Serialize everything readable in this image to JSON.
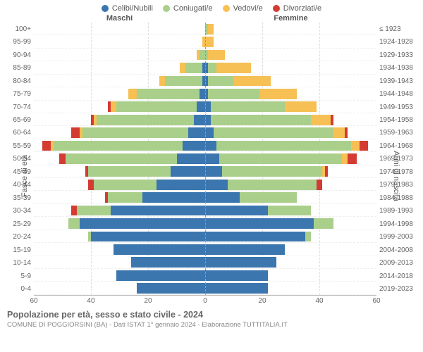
{
  "legend": [
    {
      "label": "Celibi/Nubili",
      "color": "#3b76af"
    },
    {
      "label": "Coniugati/e",
      "color": "#a9cf8b"
    },
    {
      "label": "Vedovi/e",
      "color": "#f6c054"
    },
    {
      "label": "Divorziati/e",
      "color": "#d43b33"
    }
  ],
  "headers": {
    "male": "Maschi",
    "female": "Femmine"
  },
  "axis_labels": {
    "left": "Fasce di età",
    "right": "Anni di nascita"
  },
  "x_axis": {
    "max": 60,
    "ticks": [
      60,
      40,
      20,
      0,
      20,
      40,
      60
    ]
  },
  "colors": {
    "single": "#3b76af",
    "married": "#a9cf8b",
    "widowed": "#f6c054",
    "divorced": "#d43b33",
    "grid": "#dddddd",
    "background": "#ffffff"
  },
  "categories_order": [
    "single",
    "married",
    "widowed",
    "divorced"
  ],
  "rows": [
    {
      "age": "100+",
      "birth": "≤ 1923",
      "m": {
        "single": 0,
        "married": 0,
        "widowed": 0,
        "divorced": 0
      },
      "f": {
        "single": 0,
        "married": 1,
        "widowed": 2,
        "divorced": 0
      }
    },
    {
      "age": "95-99",
      "birth": "1924-1928",
      "m": {
        "single": 0,
        "married": 0,
        "widowed": 1,
        "divorced": 0
      },
      "f": {
        "single": 0,
        "married": 0,
        "widowed": 3,
        "divorced": 0
      }
    },
    {
      "age": "90-94",
      "birth": "1929-1933",
      "m": {
        "single": 0,
        "married": 2,
        "widowed": 1,
        "divorced": 0
      },
      "f": {
        "single": 0,
        "married": 1,
        "widowed": 6,
        "divorced": 0
      }
    },
    {
      "age": "85-89",
      "birth": "1934-1938",
      "m": {
        "single": 1,
        "married": 6,
        "widowed": 2,
        "divorced": 0
      },
      "f": {
        "single": 1,
        "married": 3,
        "widowed": 12,
        "divorced": 0
      }
    },
    {
      "age": "80-84",
      "birth": "1939-1943",
      "m": {
        "single": 1,
        "married": 13,
        "widowed": 2,
        "divorced": 0
      },
      "f": {
        "single": 1,
        "married": 9,
        "widowed": 13,
        "divorced": 0
      }
    },
    {
      "age": "75-79",
      "birth": "1944-1948",
      "m": {
        "single": 2,
        "married": 22,
        "widowed": 3,
        "divorced": 0
      },
      "f": {
        "single": 1,
        "married": 18,
        "widowed": 13,
        "divorced": 0
      }
    },
    {
      "age": "70-74",
      "birth": "1949-1953",
      "m": {
        "single": 3,
        "married": 28,
        "widowed": 2,
        "divorced": 1
      },
      "f": {
        "single": 2,
        "married": 26,
        "widowed": 11,
        "divorced": 0
      }
    },
    {
      "age": "65-69",
      "birth": "1954-1958",
      "m": {
        "single": 4,
        "married": 34,
        "widowed": 1,
        "divorced": 1
      },
      "f": {
        "single": 2,
        "married": 35,
        "widowed": 7,
        "divorced": 1
      }
    },
    {
      "age": "60-64",
      "birth": "1959-1963",
      "m": {
        "single": 6,
        "married": 37,
        "widowed": 1,
        "divorced": 3
      },
      "f": {
        "single": 3,
        "married": 42,
        "widowed": 4,
        "divorced": 1
      }
    },
    {
      "age": "55-59",
      "birth": "1964-1968",
      "m": {
        "single": 8,
        "married": 45,
        "widowed": 1,
        "divorced": 3
      },
      "f": {
        "single": 4,
        "married": 47,
        "widowed": 3,
        "divorced": 3
      }
    },
    {
      "age": "50-54",
      "birth": "1969-1973",
      "m": {
        "single": 10,
        "married": 39,
        "widowed": 0,
        "divorced": 2
      },
      "f": {
        "single": 5,
        "married": 43,
        "widowed": 2,
        "divorced": 3
      }
    },
    {
      "age": "45-49",
      "birth": "1974-1978",
      "m": {
        "single": 12,
        "married": 29,
        "widowed": 0,
        "divorced": 1
      },
      "f": {
        "single": 6,
        "married": 35,
        "widowed": 1,
        "divorced": 1
      }
    },
    {
      "age": "40-44",
      "birth": "1979-1983",
      "m": {
        "single": 17,
        "married": 22,
        "widowed": 0,
        "divorced": 2
      },
      "f": {
        "single": 8,
        "married": 31,
        "widowed": 0,
        "divorced": 2
      }
    },
    {
      "age": "35-39",
      "birth": "1984-1988",
      "m": {
        "single": 22,
        "married": 12,
        "widowed": 0,
        "divorced": 1
      },
      "f": {
        "single": 12,
        "married": 20,
        "widowed": 0,
        "divorced": 0
      }
    },
    {
      "age": "30-34",
      "birth": "1989-1993",
      "m": {
        "single": 33,
        "married": 12,
        "widowed": 0,
        "divorced": 2
      },
      "f": {
        "single": 22,
        "married": 15,
        "widowed": 0,
        "divorced": 0
      }
    },
    {
      "age": "25-29",
      "birth": "1994-1998",
      "m": {
        "single": 44,
        "married": 4,
        "widowed": 0,
        "divorced": 0
      },
      "f": {
        "single": 38,
        "married": 7,
        "widowed": 0,
        "divorced": 0
      }
    },
    {
      "age": "20-24",
      "birth": "1999-2003",
      "m": {
        "single": 40,
        "married": 1,
        "widowed": 0,
        "divorced": 0
      },
      "f": {
        "single": 35,
        "married": 2,
        "widowed": 0,
        "divorced": 0
      }
    },
    {
      "age": "15-19",
      "birth": "2004-2008",
      "m": {
        "single": 32,
        "married": 0,
        "widowed": 0,
        "divorced": 0
      },
      "f": {
        "single": 28,
        "married": 0,
        "widowed": 0,
        "divorced": 0
      }
    },
    {
      "age": "10-14",
      "birth": "2009-2013",
      "m": {
        "single": 26,
        "married": 0,
        "widowed": 0,
        "divorced": 0
      },
      "f": {
        "single": 25,
        "married": 0,
        "widowed": 0,
        "divorced": 0
      }
    },
    {
      "age": "5-9",
      "birth": "2014-2018",
      "m": {
        "single": 31,
        "married": 0,
        "widowed": 0,
        "divorced": 0
      },
      "f": {
        "single": 22,
        "married": 0,
        "widowed": 0,
        "divorced": 0
      }
    },
    {
      "age": "0-4",
      "birth": "2019-2023",
      "m": {
        "single": 24,
        "married": 0,
        "widowed": 0,
        "divorced": 0
      },
      "f": {
        "single": 22,
        "married": 0,
        "widowed": 0,
        "divorced": 0
      }
    }
  ],
  "footer": {
    "title": "Popolazione per età, sesso e stato civile - 2024",
    "subtitle": "COMUNE DI POGGIORSINI (BA) - Dati ISTAT 1° gennaio 2024 - Elaborazione TUTTITALIA.IT"
  }
}
